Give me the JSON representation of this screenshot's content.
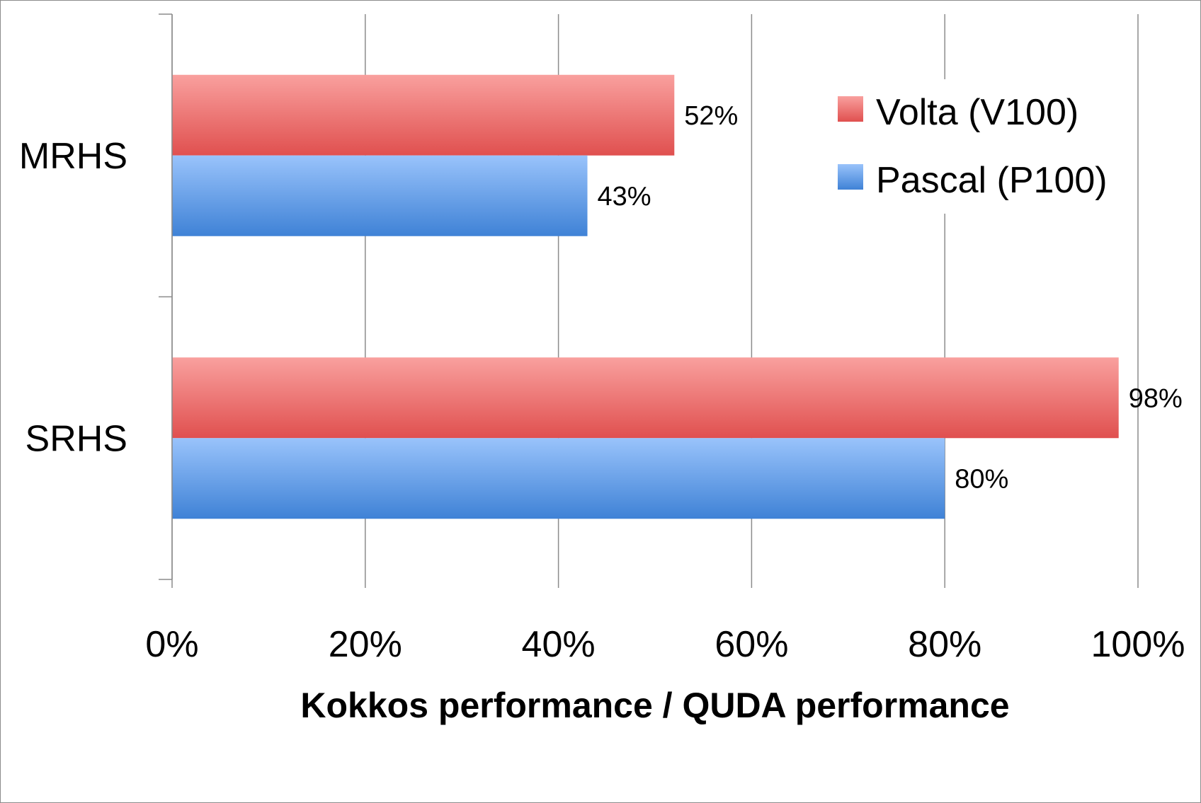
{
  "chart_data": {
    "type": "bar",
    "orientation": "horizontal",
    "categories": [
      "MRHS",
      "SRHS"
    ],
    "series": [
      {
        "name": "Volta (V100)",
        "values": [
          52,
          98
        ],
        "labels": [
          "52%",
          "98%"
        ],
        "color": "#e0504f",
        "color_light": "#f9a09e"
      },
      {
        "name": "Pascal (P100)",
        "values": [
          43,
          80
        ],
        "labels": [
          "43%",
          "80%"
        ],
        "color": "#3f82d6",
        "color_light": "#99c3fb"
      }
    ],
    "xlim": [
      0,
      100
    ],
    "xticks": [
      "0%",
      "20%",
      "40%",
      "60%",
      "80%",
      "100%"
    ],
    "xlabel": "Kokkos performance / QUDA performance",
    "ylabel": "",
    "title": "",
    "grid": "vertical",
    "legend": "top-right"
  }
}
